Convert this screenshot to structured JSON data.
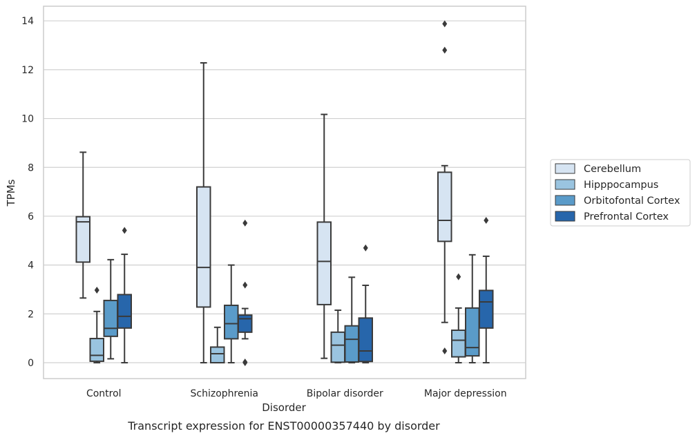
{
  "caption": "Transcript expression for ENST00000357440 by disorder",
  "chart_data": {
    "type": "box",
    "title": "",
    "xlabel": "Disorder",
    "ylabel": "TPMs",
    "ylim": [
      -0.65,
      14.6
    ],
    "yticks": [
      0,
      2,
      4,
      6,
      8,
      10,
      12,
      14
    ],
    "grid": "horizontal",
    "legend_position": "right",
    "categories": [
      "Control",
      "Schizophrenia",
      "Bipolar disorder",
      "Major depression"
    ],
    "series": [
      {
        "name": "Cerebellum",
        "color": "#d6e4f2",
        "boxes": [
          {
            "whisker_low": 2.65,
            "q1": 4.12,
            "median": 5.77,
            "q3": 5.98,
            "whisker_high": 8.62,
            "outliers": []
          },
          {
            "whisker_low": 0.0,
            "q1": 2.28,
            "median": 3.9,
            "q3": 7.2,
            "whisker_high": 12.28,
            "outliers": []
          },
          {
            "whisker_low": 0.18,
            "q1": 2.38,
            "median": 4.15,
            "q3": 5.76,
            "whisker_high": 10.17,
            "outliers": []
          },
          {
            "whisker_low": 1.65,
            "q1": 4.97,
            "median": 5.83,
            "q3": 7.8,
            "whisker_high": 8.07,
            "outliers": [
              0.48,
              12.8,
              13.88
            ]
          }
        ]
      },
      {
        "name": "Hipppocampus",
        "color": "#9ac4e0",
        "boxes": [
          {
            "whisker_low": 0.0,
            "q1": 0.06,
            "median": 0.3,
            "q3": 0.99,
            "whisker_high": 2.1,
            "outliers": [
              2.97
            ]
          },
          {
            "whisker_low": 0.0,
            "q1": 0.0,
            "median": 0.37,
            "q3": 0.64,
            "whisker_high": 1.45,
            "outliers": []
          },
          {
            "whisker_low": 0.0,
            "q1": 0.02,
            "median": 0.72,
            "q3": 1.25,
            "whisker_high": 2.15,
            "outliers": []
          },
          {
            "whisker_low": 0.0,
            "q1": 0.24,
            "median": 0.92,
            "q3": 1.33,
            "whisker_high": 2.24,
            "outliers": [
              3.52
            ]
          }
        ]
      },
      {
        "name": "Orbitofontal Cortex",
        "color": "#5a9bc9",
        "boxes": [
          {
            "whisker_low": 0.16,
            "q1": 1.08,
            "median": 1.41,
            "q3": 2.55,
            "whisker_high": 4.22,
            "outliers": []
          },
          {
            "whisker_low": 0.0,
            "q1": 0.98,
            "median": 1.6,
            "q3": 2.35,
            "whisker_high": 4.0,
            "outliers": []
          },
          {
            "whisker_low": 0.0,
            "q1": 0.03,
            "median": 0.96,
            "q3": 1.51,
            "whisker_high": 3.5,
            "outliers": []
          },
          {
            "whisker_low": 0.0,
            "q1": 0.28,
            "median": 0.62,
            "q3": 2.24,
            "whisker_high": 4.42,
            "outliers": []
          }
        ]
      },
      {
        "name": "Prefrontal Cortex",
        "color": "#2766ab",
        "boxes": [
          {
            "whisker_low": 0.0,
            "q1": 1.42,
            "median": 1.9,
            "q3": 2.79,
            "whisker_high": 4.44,
            "outliers": [
              5.42
            ]
          },
          {
            "whisker_low": 0.98,
            "q1": 1.25,
            "median": 1.8,
            "q3": 1.95,
            "whisker_high": 2.22,
            "outliers": [
              0.0,
              0.03,
              3.18,
              5.72
            ]
          },
          {
            "whisker_low": 0.0,
            "q1": 0.05,
            "median": 0.48,
            "q3": 1.83,
            "whisker_high": 3.17,
            "outliers": [
              4.7
            ]
          },
          {
            "whisker_low": 0.0,
            "q1": 1.42,
            "median": 2.49,
            "q3": 2.96,
            "whisker_high": 4.36,
            "outliers": [
              5.83
            ]
          }
        ]
      }
    ]
  }
}
